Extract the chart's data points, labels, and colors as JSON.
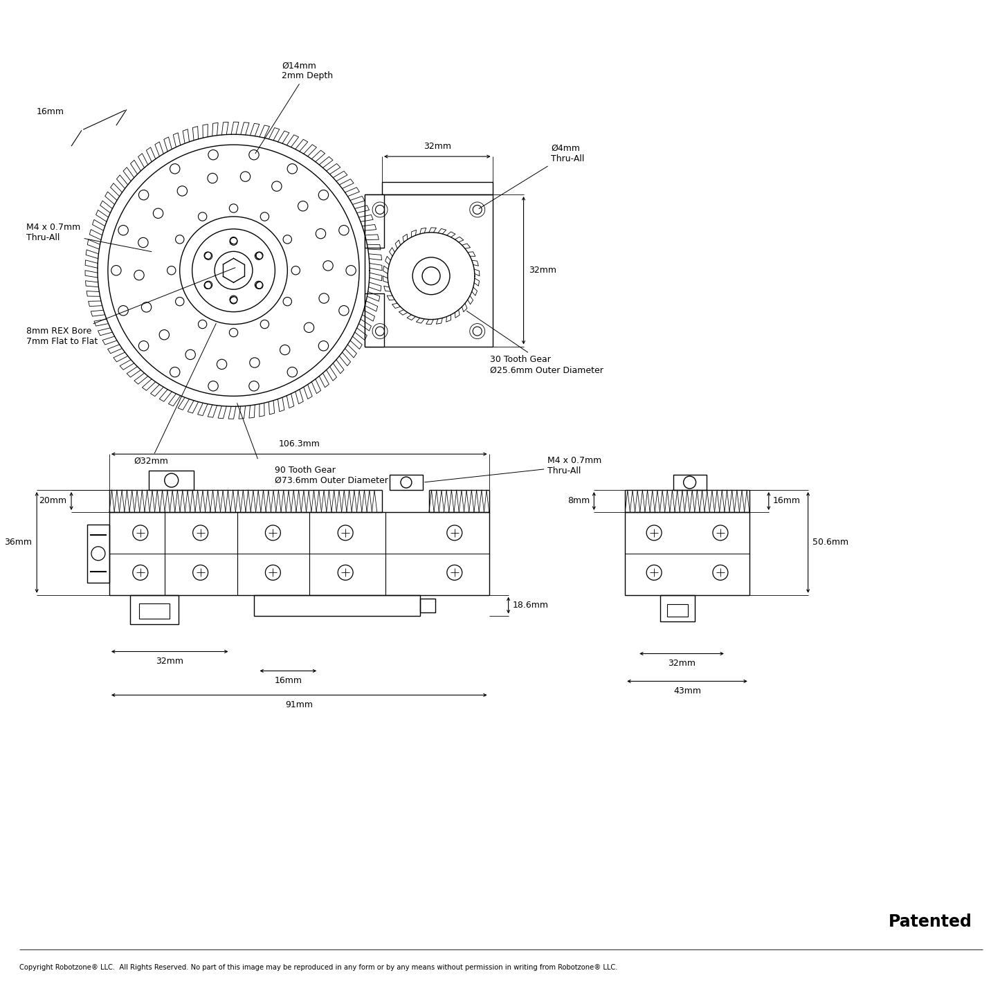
{
  "bg_color": "#ffffff",
  "line_color": "#000000",
  "lw": 1.0,
  "fs": 9.0,
  "annotations": {
    "d14mm": "Ø14mm\n2mm Depth",
    "d4mm": "Ø4mm\nThru-All",
    "m4_top": "M4 x 0.7mm\nThru-All",
    "bore": "8mm REX Bore\n7mm Flat to Flat",
    "d32mm_label": "Ø32mm",
    "gear90": "90 Tooth Gear\nØ73.6mm Outer Diameter",
    "gear30": "30 Tooth Gear\nØ25.6mm Outer Diameter",
    "dim16mm_top": "16mm",
    "dim32mm_top": "32mm",
    "dim32mm_side": "32mm",
    "dim106mm": "106.3mm",
    "dim20mm": "20mm",
    "dim36mm": "36mm",
    "dim32mm_front": "32mm",
    "dim16mm_front": "16mm",
    "dim91mm": "91mm",
    "dim18_6mm": "18.6mm",
    "m4_front": "M4 x 0.7mm\nThru-All",
    "dim8mm": "8mm",
    "dim16mm_right": "16mm",
    "dim50_6mm": "50.6mm",
    "dim32mm_right": "32mm",
    "dim43mm": "43mm",
    "patented": "Patented",
    "copyright": "Copyright Robotzone® LLC.  All Rights Reserved. No part of this image may be reproduced in any form or by any means without permission in writing from Robotzone® LLC."
  }
}
